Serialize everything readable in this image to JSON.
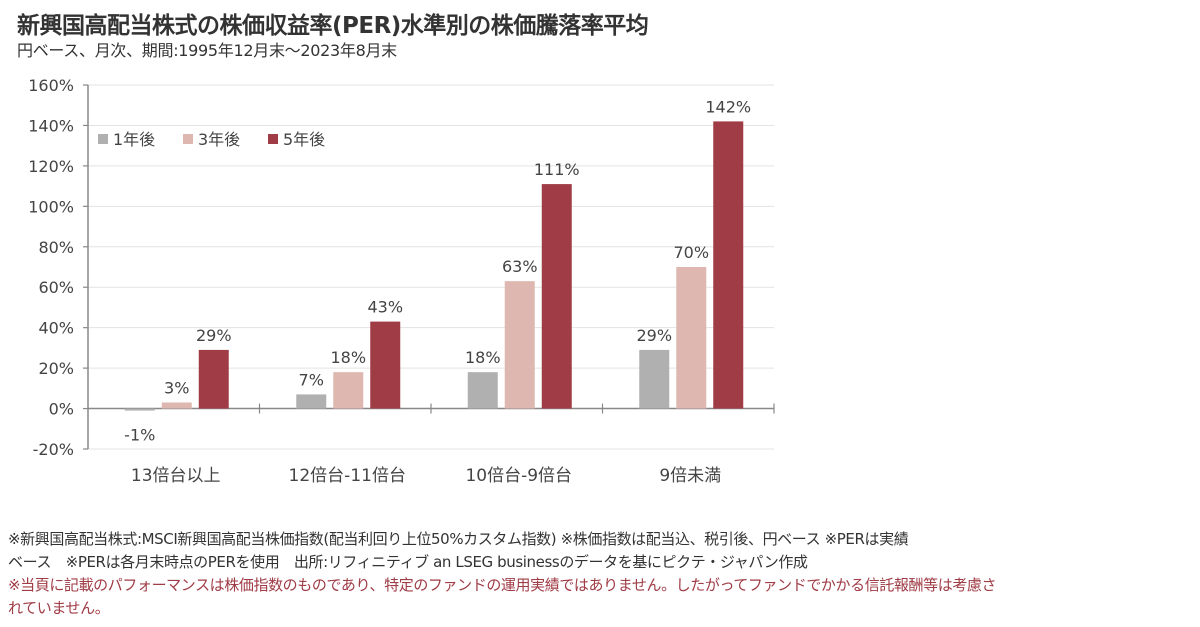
{
  "header": {
    "title": "新興国高配当株式の株価収益率(PER)水準別の株価騰落率平均",
    "subtitle": "円ベース、月次、期間:1995年12月末～2023年8月末"
  },
  "chart_data": {
    "type": "bar",
    "title": "新興国高配当株式の株価収益率(PER)水準別の株価騰落率平均",
    "subtitle": "円ベース、月次、期間:1995年12月末～2023年8月末",
    "xlabel": "",
    "ylabel": "",
    "categories": [
      "13倍台以上",
      "12倍台-11倍台",
      "10倍台-9倍台",
      "9倍未満"
    ],
    "series": [
      {
        "name": "1年後",
        "color": "#b0b0b0",
        "values": [
          -1,
          7,
          18,
          29
        ],
        "labels": [
          "-1%",
          "7%",
          "18%",
          "29%"
        ]
      },
      {
        "name": "3年後",
        "color": "#deb8b0",
        "values": [
          3,
          18,
          63,
          70
        ],
        "labels": [
          "3%",
          "18%",
          "63%",
          "70%"
        ]
      },
      {
        "name": "5年後",
        "color": "#a03c46",
        "values": [
          29,
          43,
          111,
          142
        ],
        "labels": [
          "29%",
          "43%",
          "111%",
          "142%"
        ]
      }
    ],
    "ylim": [
      -20,
      160
    ],
    "yticks": [
      -20,
      0,
      20,
      40,
      60,
      80,
      100,
      120,
      140,
      160
    ],
    "ytick_labels": [
      "-20%",
      "0%",
      "20%",
      "40%",
      "60%",
      "80%",
      "100%",
      "120%",
      "140%",
      "160%"
    ],
    "grid": true,
    "legend_position": "top-left"
  },
  "footnotes": {
    "line1": "※新興国高配当株式:MSCI新興国高配当株価指数(配当利回り上位50%カスタム指数) ※株価指数は配当込、税引後、円ベース ※PERは実績",
    "line2": "ベース　※PERは各月末時点のPERを使用　出所:リフィニティブ an LSEG businessのデータを基にピクテ・ジャパン作成",
    "line3": "※当頁に記載のパフォーマンスは株価指数のものであり、特定のファンドの運用実績ではありません。したがってファンドでかかる信託報酬等は考慮さ",
    "line4": "れていません。"
  }
}
